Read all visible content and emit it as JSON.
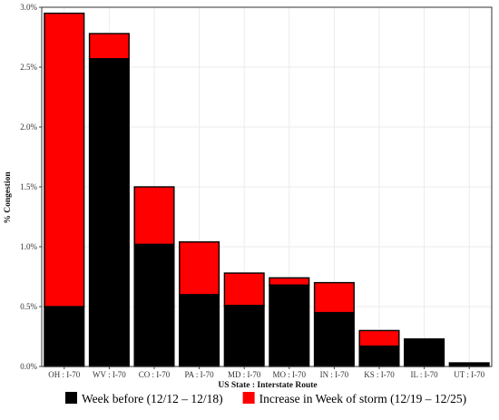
{
  "chart_data": {
    "type": "bar",
    "stacked": true,
    "categories": [
      "OH : I-70",
      "WV : I-70",
      "CO : I-70",
      "PA : I-70",
      "MD : I-70",
      "MO : I-70",
      "IN : I-70",
      "KS : I-70",
      "IL : I-70",
      "UT : I-70"
    ],
    "series": [
      {
        "name": "Week before (12/12 – 12/18)",
        "color": "#000000",
        "values": [
          0.5,
          2.57,
          1.02,
          0.6,
          0.51,
          0.68,
          0.45,
          0.17,
          0.23,
          0.03
        ]
      },
      {
        "name": "Increase in Week of storm (12/19 – 12/25)",
        "color": "#ff0000",
        "values": [
          2.45,
          0.21,
          0.48,
          0.44,
          0.27,
          0.06,
          0.25,
          0.13,
          0.0,
          0.0
        ]
      }
    ],
    "xlabel": "US State : Interstate Route",
    "ylabel": "% Congestion",
    "ylim": [
      0,
      3.0
    ],
    "yticks": [
      0,
      0.5,
      1.0,
      1.5,
      2.0,
      2.5,
      3.0
    ],
    "ytick_labels": [
      "0.0%",
      "0.5%",
      "1.0%",
      "1.5%",
      "2.0%",
      "2.5%",
      "3.0%"
    ],
    "grid": true,
    "legend_position": "bottom"
  }
}
